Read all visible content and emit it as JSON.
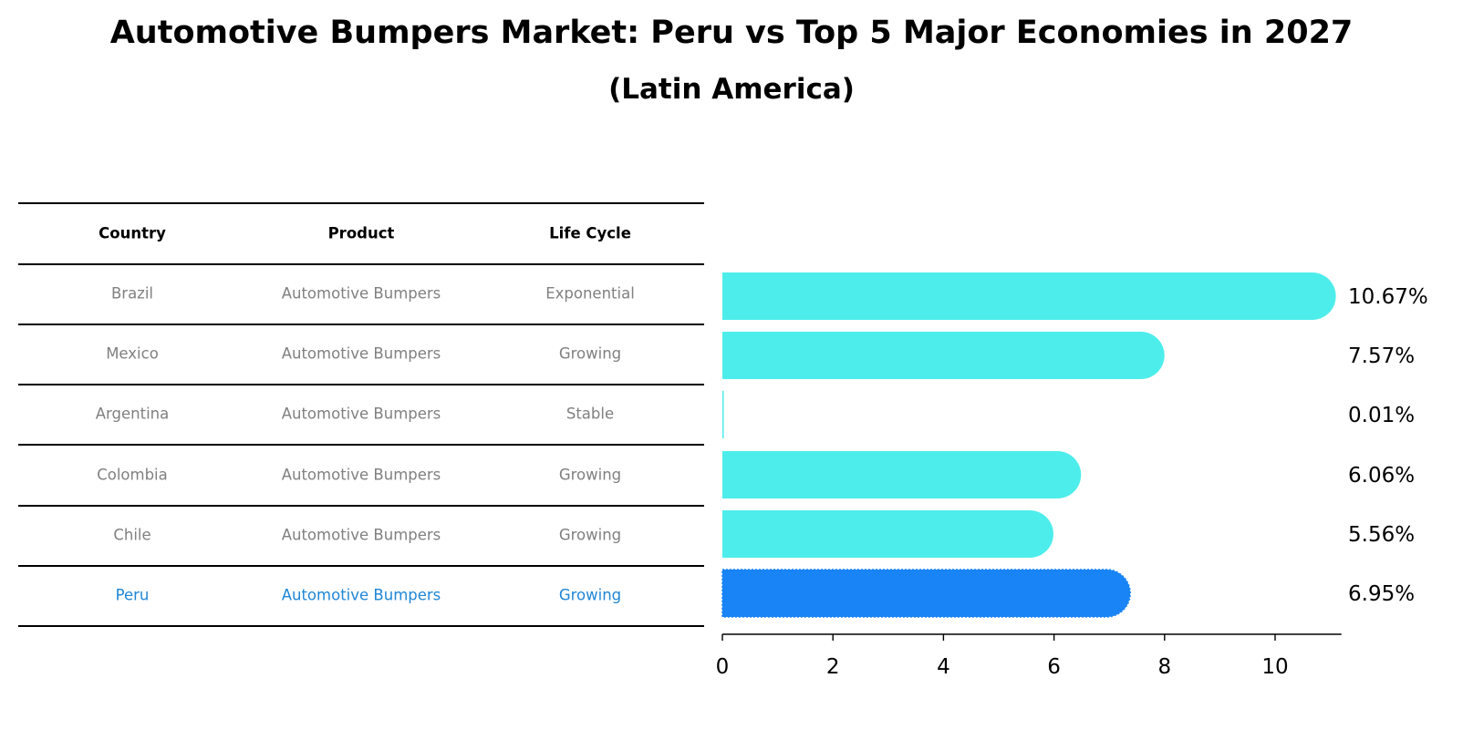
{
  "header": {
    "title": "Automotive Bumpers Market: Peru vs Top 5 Major Economies in 2027",
    "subtitle": "(Latin America)"
  },
  "table": {
    "columns": [
      "Country",
      "Product",
      "Life Cycle"
    ],
    "rows": [
      {
        "country": "Brazil",
        "product": "Automotive Bumpers",
        "life_cycle": "Exponential",
        "highlight": false
      },
      {
        "country": "Mexico",
        "product": "Automotive Bumpers",
        "life_cycle": "Growing",
        "highlight": false
      },
      {
        "country": "Argentina",
        "product": "Automotive Bumpers",
        "life_cycle": "Stable",
        "highlight": false
      },
      {
        "country": "Colombia",
        "product": "Automotive Bumpers",
        "life_cycle": "Growing",
        "highlight": false
      },
      {
        "country": "Chile",
        "product": "Automotive Bumpers",
        "life_cycle": "Growing",
        "highlight": false
      },
      {
        "country": "Peru",
        "product": "Automotive Bumpers",
        "life_cycle": "Growing",
        "highlight": true
      }
    ]
  },
  "colors": {
    "bar_default": "#4DEDEB",
    "bar_highlight": "#1984F5",
    "text_default": "#808080",
    "text_highlight": "#1F86D6"
  },
  "chart_data": {
    "type": "bar",
    "orientation": "horizontal",
    "title": "Automotive Bumpers Market: Peru vs Top 5 Major Economies in 2027",
    "subtitle": "(Latin America)",
    "categories": [
      "Brazil",
      "Mexico",
      "Argentina",
      "Colombia",
      "Chile",
      "Peru"
    ],
    "values": [
      10.67,
      7.57,
      0.01,
      6.06,
      5.56,
      6.95
    ],
    "value_labels": [
      "10.67%",
      "7.57%",
      "0.01%",
      "6.06%",
      "5.56%",
      "6.95%"
    ],
    "highlight": "Peru",
    "xlabel": "",
    "ylabel": "",
    "xticks": [
      0,
      2,
      4,
      6,
      8,
      10
    ],
    "xtick_labels": [
      "0",
      "2",
      "4",
      "6",
      "8",
      "10"
    ],
    "xlim": [
      0,
      11.2
    ],
    "grid": false,
    "legend": null
  }
}
